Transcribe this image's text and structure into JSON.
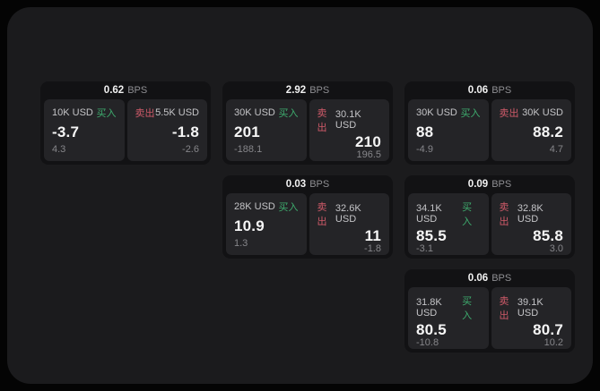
{
  "labels": {
    "buy": "买入",
    "sell": "卖出",
    "bps_unit": "BPS"
  },
  "colors": {
    "page_bg": "#040404",
    "panel_bg": "#1b1b1d",
    "card_bg": "#121214",
    "tile_bg": "#242427",
    "buy_green": "#3eac6e",
    "sell_red": "#cf5a69",
    "text_primary": "#f6f6f6",
    "text_secondary": "#86868a"
  },
  "cards": [
    {
      "bps": "0.62",
      "buy": {
        "amount": "10K USD",
        "main": "-3.7",
        "sub": "4.3"
      },
      "sell": {
        "amount": "5.5K USD",
        "main": "-1.8",
        "sub": "-2.6"
      }
    },
    {
      "bps": "2.92",
      "buy": {
        "amount": "30K USD",
        "main": "201",
        "sub": "-188.1"
      },
      "sell": {
        "amount": "30.1K USD",
        "main": "210",
        "sub": "196.5"
      }
    },
    {
      "bps": "0.06",
      "buy": {
        "amount": "30K USD",
        "main": "88",
        "sub": "-4.9"
      },
      "sell": {
        "amount": "30K USD",
        "main": "88.2",
        "sub": "4.7"
      }
    },
    {
      "bps": "0.03",
      "buy": {
        "amount": "28K USD",
        "main": "10.9",
        "sub": "1.3"
      },
      "sell": {
        "amount": "32.6K USD",
        "main": "11",
        "sub": "-1.8"
      }
    },
    {
      "bps": "0.09",
      "buy": {
        "amount": "34.1K USD",
        "main": "85.5",
        "sub": "-3.1"
      },
      "sell": {
        "amount": "32.8K USD",
        "main": "85.8",
        "sub": "3.0"
      }
    },
    {
      "bps": "0.06",
      "buy": {
        "amount": "31.8K USD",
        "main": "80.5",
        "sub": "-10.8"
      },
      "sell": {
        "amount": "39.1K USD",
        "main": "80.7",
        "sub": "10.2"
      }
    }
  ]
}
